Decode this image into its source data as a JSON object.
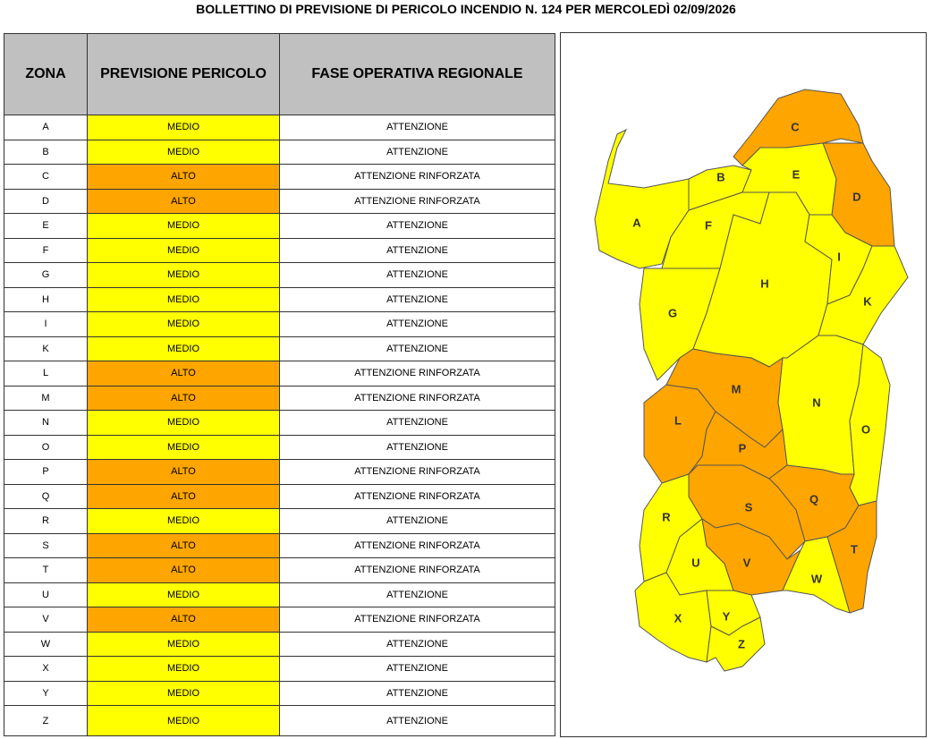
{
  "title": "BOLLETTINO DI PREVISIONE DI PERICOLO INCENDIO N. 124 PER MERCOLEDÌ 02/09/2026",
  "colors": {
    "MEDIO": "#ffff00",
    "ALTO": "#ffa500"
  },
  "table": {
    "headers": [
      "ZONA",
      "PREVISIONE PERICOLO",
      "FASE OPERATIVA REGIONALE"
    ],
    "rows": [
      [
        "A",
        "MEDIO",
        "ATTENZIONE"
      ],
      [
        "B",
        "MEDIO",
        "ATTENZIONE"
      ],
      [
        "C",
        "ALTO",
        "ATTENZIONE RINFORZATA"
      ],
      [
        "D",
        "ALTO",
        "ATTENZIONE RINFORZATA"
      ],
      [
        "E",
        "MEDIO",
        "ATTENZIONE"
      ],
      [
        "F",
        "MEDIO",
        "ATTENZIONE"
      ],
      [
        "G",
        "MEDIO",
        "ATTENZIONE"
      ],
      [
        "H",
        "MEDIO",
        "ATTENZIONE"
      ],
      [
        "I",
        "MEDIO",
        "ATTENZIONE"
      ],
      [
        "K",
        "MEDIO",
        "ATTENZIONE"
      ],
      [
        "L",
        "ALTO",
        "ATTENZIONE RINFORZATA"
      ],
      [
        "M",
        "ALTO",
        "ATTENZIONE RINFORZATA"
      ],
      [
        "N",
        "MEDIO",
        "ATTENZIONE"
      ],
      [
        "O",
        "MEDIO",
        "ATTENZIONE"
      ],
      [
        "P",
        "ALTO",
        "ATTENZIONE RINFORZATA"
      ],
      [
        "Q",
        "ALTO",
        "ATTENZIONE RINFORZATA"
      ],
      [
        "R",
        "MEDIO",
        "ATTENZIONE"
      ],
      [
        "S",
        "ALTO",
        "ATTENZIONE RINFORZATA"
      ],
      [
        "T",
        "ALTO",
        "ATTENZIONE RINFORZATA"
      ],
      [
        "U",
        "MEDIO",
        "ATTENZIONE"
      ],
      [
        "V",
        "ALTO",
        "ATTENZIONE RINFORZATA"
      ],
      [
        "W",
        "MEDIO",
        "ATTENZIONE"
      ],
      [
        "X",
        "MEDIO",
        "ATTENZIONE"
      ],
      [
        "Y",
        "MEDIO",
        "ATTENZIONE"
      ],
      [
        "Z",
        "MEDIO",
        "ATTENZIONE"
      ]
    ]
  }
}
